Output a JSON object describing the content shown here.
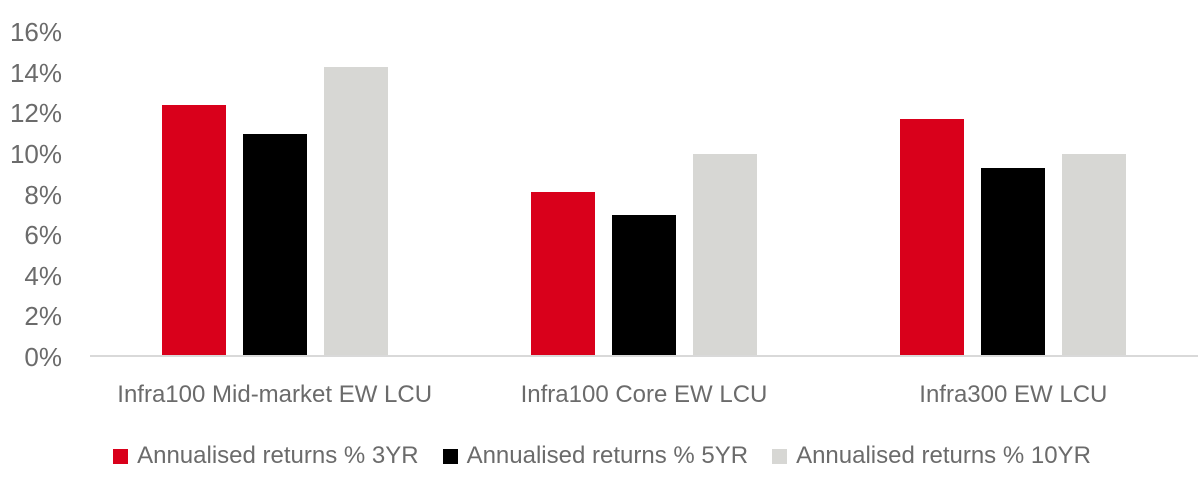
{
  "colors": {
    "series_3yr": "#D9001B",
    "series_5yr": "#000000",
    "series_10yr": "#D7D7D4",
    "text": "#6B6B6B",
    "axis_line": "#D9D9D9",
    "background": "#FFFFFF"
  },
  "chart_data": {
    "type": "bar",
    "title": "",
    "xlabel": "",
    "ylabel": "",
    "categories": [
      "Infra100 Mid-market EW LCU",
      "Infra100 Core EW LCU",
      "Infra300 EW LCU"
    ],
    "series": [
      {
        "name": "Annualised returns % 3YR",
        "color": "#D9001B",
        "values": [
          12.4,
          8.1,
          11.7
        ]
      },
      {
        "name": "Annualised returns % 5YR",
        "color": "#000000",
        "values": [
          11.0,
          7.0,
          9.3
        ]
      },
      {
        "name": "Annualised returns % 10YR",
        "color": "#D7D7D4",
        "values": [
          14.3,
          10.0,
          10.0
        ]
      }
    ],
    "ylim": [
      0,
      16
    ],
    "ytick_step": 2,
    "ytick_labels": [
      "0%",
      "2%",
      "4%",
      "6%",
      "8%",
      "10%",
      "12%",
      "14%",
      "16%"
    ],
    "grid": false,
    "legend_position": "bottom-center"
  }
}
